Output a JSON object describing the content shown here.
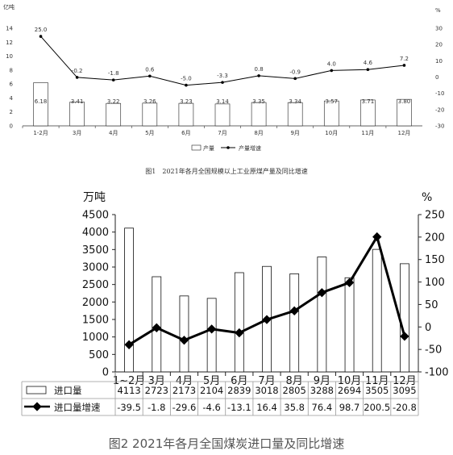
{
  "chart_data": [
    {
      "type": "bar",
      "title": "图1　2021年各月全国规模以上工业原煤产量及同比增速",
      "ylabel": "亿吨",
      "y2label": "%",
      "ylim": [
        0,
        14
      ],
      "y2lim": [
        -30,
        30
      ],
      "yticks": [
        0,
        2,
        4,
        6,
        8,
        10,
        12,
        14
      ],
      "y2ticks": [
        -30,
        -20,
        -10,
        0,
        10,
        20,
        30
      ],
      "categories": [
        "1-2月",
        "3月",
        "4月",
        "5月",
        "6月",
        "7月",
        "8月",
        "9月",
        "10月",
        "11月",
        "12月"
      ],
      "series": [
        {
          "name": "产量",
          "type": "bar",
          "values": [
            6.18,
            3.41,
            3.22,
            3.26,
            3.23,
            3.14,
            3.35,
            3.34,
            3.57,
            3.71,
            3.8
          ]
        },
        {
          "name": "产量增速",
          "type": "line",
          "axis": "right",
          "values": [
            25.0,
            -0.2,
            -1.8,
            0.6,
            -5.0,
            -3.3,
            0.8,
            -0.9,
            4.0,
            4.6,
            7.2
          ]
        }
      ],
      "bar_labels": [
        "6.18",
        "3.41",
        "3.22",
        "3.26",
        "3.23",
        "3.14",
        "3.35",
        "3.34",
        "3.57",
        "3.71",
        "3.80"
      ],
      "line_labels": [
        "25.0",
        "-0.2",
        "-1.8",
        "0.6",
        "-5.0",
        "-3.3",
        "0.8",
        "-0.9",
        "4.0",
        "4.6",
        "7.2"
      ],
      "legend": "bottom"
    },
    {
      "type": "bar",
      "title": "图2  2021年各月全国煤炭进口量及同比增速",
      "ylabel": "万吨",
      "y2label": "%",
      "ylim": [
        0,
        4500
      ],
      "y2lim": [
        -100,
        250
      ],
      "yticks": [
        0,
        500,
        1000,
        1500,
        2000,
        2500,
        3000,
        3500,
        4000,
        4500
      ],
      "y2ticks": [
        -100,
        -50,
        0,
        50,
        100,
        150,
        200,
        250
      ],
      "categories": [
        "1~2月",
        "3月",
        "4月",
        "5月",
        "6月",
        "7月",
        "8月",
        "9月",
        "10月",
        "11月",
        "12月"
      ],
      "series": [
        {
          "name": "进口量",
          "type": "bar",
          "values": [
            4113,
            2723,
            2173,
            2104,
            2839,
            3018,
            2805,
            3288,
            2694,
            3505,
            3095
          ]
        },
        {
          "name": "进口量增速",
          "type": "line",
          "axis": "right",
          "values": [
            -39.5,
            -1.8,
            -29.6,
            -4.6,
            -13.1,
            16.4,
            35.8,
            76.4,
            98.7,
            200.5,
            -20.8
          ]
        }
      ],
      "table_rows": [
        [
          "4113",
          "2723",
          "2173",
          "2104",
          "2839",
          "3018",
          "2805",
          "3288",
          "2694",
          "3505",
          "3095"
        ],
        [
          "-39.5",
          "-1.8",
          "-29.6",
          "-4.6",
          "-13.1",
          "16.4",
          "35.8",
          "76.4",
          "98.7",
          "200.5",
          "-20.8"
        ]
      ],
      "legend": "data table below"
    }
  ],
  "colors": {
    "axis": "#222222",
    "bar_fill": "#ffffff",
    "line1": "#000000",
    "line2": "#000000"
  }
}
